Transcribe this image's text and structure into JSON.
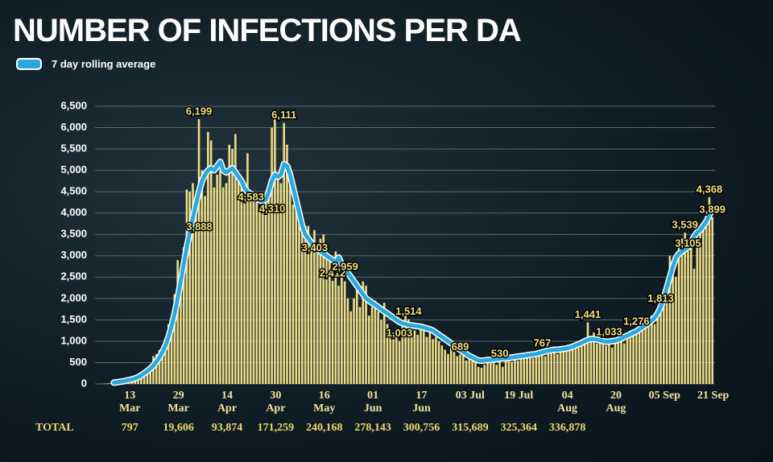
{
  "chart_data": {
    "type": "bar",
    "title": "NUMBER OF INFECTIONS PER DA",
    "ylim": [
      0,
      6500
    ],
    "yticks": [
      0,
      500,
      {
        "value": 1000,
        "label": "1,000"
      },
      {
        "value": 1500,
        "label": "1,500"
      },
      {
        "value": 2000,
        "label": "2,000"
      },
      {
        "value": 2500,
        "label": "2,500"
      },
      {
        "value": 3000,
        "label": "3,000"
      },
      {
        "value": 3500,
        "label": "3,500"
      },
      {
        "value": 4000,
        "label": "4,000"
      },
      {
        "value": 4500,
        "label": "4,500"
      },
      {
        "value": 5000,
        "label": "5,000"
      },
      {
        "value": 5500,
        "label": "5,500"
      },
      {
        "value": 6000,
        "label": "6,000"
      },
      {
        "value": 6500,
        "label": "6,500"
      }
    ],
    "grid": true,
    "categories": [
      null,
      null,
      null,
      null,
      null,
      null,
      null,
      null,
      null,
      null,
      null,
      null,
      "13 Mar",
      null,
      null,
      null,
      null,
      null,
      null,
      null,
      null,
      null,
      null,
      null,
      null,
      null,
      null,
      null,
      "29 Mar",
      null,
      null,
      null,
      null,
      null,
      null,
      null,
      null,
      null,
      null,
      null,
      null,
      null,
      null,
      null,
      "14 Apr",
      null,
      null,
      null,
      null,
      null,
      null,
      null,
      null,
      null,
      null,
      null,
      null,
      null,
      null,
      null,
      "30 Apr",
      null,
      null,
      null,
      null,
      null,
      null,
      null,
      null,
      null,
      null,
      null,
      null,
      null,
      null,
      null,
      "16 May",
      null,
      null,
      null,
      null,
      null,
      null,
      null,
      null,
      null,
      null,
      null,
      null,
      null,
      null,
      null,
      "01 Jun",
      null,
      null,
      null,
      null,
      null,
      null,
      null,
      null,
      null,
      null,
      null,
      null,
      null,
      null,
      null,
      "17 Jun",
      null,
      null,
      null,
      null,
      null,
      null,
      null,
      null,
      null,
      null,
      null,
      null,
      null,
      null,
      null,
      "03 Jul",
      null,
      null,
      null,
      null,
      null,
      null,
      null,
      null,
      null,
      null,
      null,
      null,
      null,
      null,
      null,
      "19 Jul",
      null,
      null,
      null,
      null,
      null,
      null,
      null,
      null,
      null,
      null,
      null,
      null,
      null,
      null,
      null,
      "04 Aug",
      null,
      null,
      null,
      null,
      null,
      null,
      null,
      null,
      null,
      null,
      null,
      null,
      null,
      null,
      null,
      "20 Aug",
      null,
      null,
      null,
      null,
      null,
      null,
      null,
      null,
      null,
      null,
      null,
      null,
      null,
      null,
      null,
      "05 Sep",
      null,
      null,
      null,
      null,
      null,
      null,
      null,
      null,
      null,
      null,
      null,
      null,
      null,
      null,
      null,
      "21 Sep"
    ],
    "series": [
      {
        "color": "#efdc86",
        "values": [
          0,
          0,
          4,
          6,
          10,
          15,
          20,
          25,
          35,
          45,
          60,
          80,
          90,
          110,
          140,
          170,
          220,
          300,
          330,
          420,
          650,
          700,
          800,
          900,
          1050,
          1400,
          1450,
          2100,
          2900,
          2500,
          3200,
          4550,
          4500,
          4700,
          4000,
          6199,
          5000,
          4400,
          5900,
          5700,
          4600,
          4900,
          5000,
          4600,
          4700,
          5600,
          5500,
          5850,
          4800,
          4600,
          4400,
          5400,
          4400,
          4300,
          4300,
          4100,
          4000,
          4250,
          4500,
          6000,
          6200,
          4800,
          4700,
          6111,
          5600,
          5100,
          4200,
          4300,
          3900,
          3850,
          3700,
          3700,
          3400,
          3600,
          3200,
          3400,
          3500,
          3100,
          2900,
          2412,
          3100,
          2300,
          2800,
          2400,
          2000,
          1700,
          2000,
          2300,
          1800,
          2400,
          2300,
          1600,
          1800,
          1950,
          1700,
          1500,
          1900,
          1400,
          1300,
          1200,
          1100,
          1003,
          1400,
          1600,
          1514,
          1300,
          1250,
          1150,
          1300,
          1350,
          1100,
          1200,
          1050,
          1100,
          1000,
          900,
          800,
          700,
          850,
          750,
          650,
          689,
          700,
          550,
          600,
          550,
          500,
          400,
          380,
          450,
          500,
          550,
          500,
          450,
          530,
          400,
          550,
          600,
          520,
          600,
          550,
          650,
          600,
          700,
          650,
          600,
          680,
          700,
          767,
          650,
          700,
          750,
          800,
          700,
          850,
          750,
          900,
          800,
          900,
          850,
          1000,
          900,
          950,
          1441,
          1100,
          1200,
          950,
          1000,
          1150,
          900,
          1033,
          850,
          1000,
          1100,
          1000,
          950,
          1150,
          1250,
          1200,
          1276,
          1300,
          1400,
          1350,
          1500,
          1600,
          1400,
          1550,
          1813,
          2000,
          2300,
          3000,
          2900,
          2500,
          3200,
          3400,
          3539,
          3105,
          3300,
          2700,
          3400,
          3600,
          3800,
          4000,
          4368,
          3899
        ],
        "value_labels": [
          null,
          null,
          null,
          null,
          null,
          null,
          null,
          null,
          null,
          null,
          null,
          null,
          null,
          null,
          null,
          null,
          null,
          null,
          null,
          null,
          null,
          null,
          null,
          null,
          null,
          null,
          null,
          null,
          null,
          null,
          null,
          null,
          null,
          null,
          null,
          "6,199",
          null,
          null,
          null,
          null,
          null,
          null,
          null,
          null,
          null,
          null,
          null,
          null,
          null,
          null,
          null,
          null,
          null,
          null,
          null,
          null,
          null,
          null,
          null,
          null,
          null,
          null,
          null,
          "6,111",
          null,
          null,
          null,
          null,
          null,
          null,
          null,
          null,
          null,
          null,
          null,
          null,
          null,
          null,
          null,
          "2,412",
          null,
          null,
          null,
          null,
          null,
          null,
          null,
          null,
          null,
          null,
          null,
          null,
          null,
          null,
          null,
          null,
          null,
          null,
          null,
          null,
          null,
          "1,003",
          null,
          null,
          "1,514",
          null,
          null,
          null,
          null,
          null,
          null,
          null,
          null,
          null,
          null,
          null,
          null,
          null,
          null,
          null,
          null,
          "689",
          null,
          null,
          null,
          null,
          null,
          null,
          null,
          null,
          null,
          null,
          null,
          null,
          "530",
          null,
          null,
          null,
          null,
          null,
          null,
          null,
          null,
          null,
          null,
          null,
          null,
          null,
          "767",
          null,
          null,
          null,
          null,
          null,
          null,
          null,
          null,
          null,
          null,
          null,
          null,
          null,
          null,
          "1,441",
          null,
          null,
          null,
          null,
          null,
          null,
          "1,033",
          null,
          null,
          null,
          null,
          null,
          null,
          null,
          null,
          "1,276",
          null,
          null,
          null,
          null,
          null,
          null,
          null,
          "1,813",
          null,
          null,
          null,
          null,
          null,
          null,
          null,
          "3,539",
          "3,105",
          null,
          null,
          null,
          null,
          null,
          null,
          "4,368",
          "3,899"
        ]
      },
      {
        "name": "7 day rolling average",
        "type": "line",
        "color": "#2aa9de",
        "values": [
          null,
          null,
          null,
          null,
          null,
          null,
          null,
          30,
          40,
          50,
          60,
          75,
          90,
          110,
          130,
          160,
          200,
          250,
          300,
          360,
          430,
          520,
          620,
          750,
          900,
          1100,
          1350,
          1650,
          2000,
          2400,
          2800,
          3200,
          3550,
          3888,
          4200,
          4500,
          4750,
          4900,
          5000,
          5050,
          5000,
          5100,
          5200,
          5000,
          4950,
          5000,
          5050,
          4950,
          4850,
          4750,
          4583,
          4500,
          4450,
          4400,
          4350,
          4300,
          4280,
          4310,
          4500,
          4750,
          4900,
          4850,
          4900,
          5150,
          5100,
          4900,
          4600,
          4300,
          4000,
          3700,
          3500,
          3403,
          3300,
          3200,
          3150,
          3100,
          3050,
          3000,
          2950,
          2900,
          2850,
          2959,
          2800,
          2700,
          2600,
          2500,
          2400,
          2300,
          2200,
          2100,
          2000,
          1950,
          1900,
          1850,
          1800,
          1750,
          1700,
          1650,
          1600,
          1550,
          1500,
          1450,
          1420,
          1400,
          1380,
          1370,
          1360,
          1350,
          1340,
          1320,
          1300,
          1280,
          1250,
          1200,
          1150,
          1100,
          1050,
          1000,
          950,
          900,
          850,
          800,
          750,
          700,
          650,
          620,
          580,
          550,
          540,
          550,
          560,
          560,
          570,
          580,
          590,
          600,
          600,
          610,
          620,
          630,
          640,
          650,
          660,
          670,
          680,
          690,
          700,
          720,
          740,
          760,
          780,
          790,
          800,
          800,
          810,
          820,
          830,
          850,
          870,
          900,
          930,
          960,
          1000,
          1030,
          1050,
          1050,
          1040,
          1020,
          1000,
          990,
          990,
          1000,
          1010,
          1030,
          1060,
          1100,
          1130,
          1160,
          1200,
          1230,
          1280,
          1330,
          1380,
          1430,
          1480,
          1550,
          1650,
          1800,
          2000,
          2250,
          2500,
          2750,
          2950,
          3050,
          3100,
          3150,
          3200,
          3300,
          3450,
          3550,
          3600,
          3700,
          3800,
          3950,
          4100
        ],
        "value_labels": [
          null,
          null,
          null,
          null,
          null,
          null,
          null,
          null,
          null,
          null,
          null,
          null,
          null,
          null,
          null,
          null,
          null,
          null,
          null,
          null,
          null,
          null,
          null,
          null,
          null,
          null,
          null,
          null,
          null,
          null,
          null,
          null,
          null,
          "3,888",
          null,
          null,
          null,
          null,
          null,
          null,
          null,
          null,
          null,
          null,
          null,
          null,
          null,
          null,
          null,
          null,
          "4,583",
          null,
          null,
          null,
          null,
          null,
          null,
          "4,310",
          null,
          null,
          null,
          null,
          null,
          null,
          null,
          null,
          null,
          null,
          null,
          null,
          null,
          "3,403",
          null,
          null,
          null,
          null,
          null,
          null,
          null,
          null,
          null,
          "2,959",
          null,
          null,
          null,
          null,
          null,
          null,
          null,
          null,
          null,
          null,
          null,
          null,
          null,
          null,
          null,
          null,
          null,
          null,
          null,
          null,
          null,
          null,
          null,
          null,
          null,
          null,
          null,
          null,
          null,
          null,
          null,
          null,
          null,
          null,
          null,
          null,
          null,
          null,
          null,
          null,
          null,
          null,
          null,
          null,
          null,
          null,
          null,
          null,
          null,
          null,
          null,
          null,
          null,
          null,
          null,
          null,
          null,
          null,
          null,
          null,
          null,
          null,
          null,
          null,
          null,
          null,
          null,
          null,
          null,
          null,
          null,
          null,
          null,
          null,
          null,
          null,
          null,
          null,
          null,
          null,
          null,
          null,
          null,
          null,
          null,
          null,
          null,
          null,
          null,
          null,
          null,
          null,
          null,
          null,
          null,
          null,
          null,
          null,
          null,
          null,
          null,
          null,
          null,
          null,
          null,
          null,
          null,
          null,
          null,
          null,
          null,
          null,
          null,
          null,
          null,
          null,
          null,
          null,
          null,
          null,
          null,
          null,
          null
        ]
      }
    ],
    "totals_label": "TOTAL",
    "totals": [
      {
        "value": 797,
        "label": "797"
      },
      {
        "value": 19606,
        "label": "19,606"
      },
      {
        "value": 93874,
        "label": "93,874"
      },
      {
        "value": 171259,
        "label": "171,259"
      },
      {
        "value": 240168,
        "label": "240,168"
      },
      {
        "value": 278143,
        "label": "278,143"
      },
      {
        "value": 300756,
        "label": "300,756"
      },
      {
        "value": 315689,
        "label": "315,689"
      },
      {
        "value": 325364,
        "label": "325,364"
      },
      {
        "value": 336878,
        "label": "336,878"
      }
    ]
  }
}
